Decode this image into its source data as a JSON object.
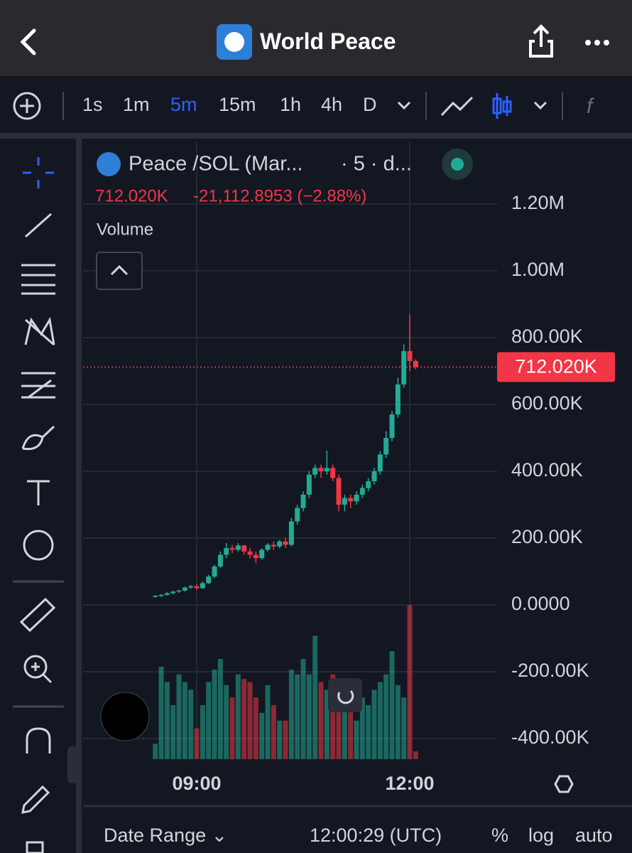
{
  "header": {
    "title": "World Peace"
  },
  "toolbar": {
    "intervals": [
      "1s",
      "1m",
      "5m",
      "15m",
      "1h",
      "4h",
      "D"
    ]
  },
  "chart_data": {
    "type": "candlestick",
    "title": "Peace /SOL (Mar...",
    "subtitle": "· 5 · d...",
    "change": "-21,112.8953 (−2.88%)",
    "volume_label": "Volume",
    "categories": [
      null,
      null,
      null,
      null,
      null,
      null,
      null,
      "09:00",
      null,
      null,
      null,
      null,
      null,
      null,
      null,
      null,
      null,
      null,
      null,
      null,
      null,
      null,
      null,
      null,
      null,
      null,
      null,
      null,
      null,
      null,
      null,
      null,
      null,
      null,
      null,
      null,
      null,
      null,
      null,
      null,
      null,
      null,
      null,
      "12:00",
      null
    ],
    "open": [
      25000,
      27000,
      30000,
      35000,
      40000,
      43000,
      52000,
      56000,
      50000,
      65000,
      85000,
      115000,
      150000,
      170000,
      165000,
      178000,
      160000,
      150000,
      140000,
      165000,
      180000,
      175000,
      190000,
      180000,
      250000,
      290000,
      330000,
      390000,
      410000,
      400000,
      410000,
      380000,
      300000,
      320000,
      310000,
      330000,
      350000,
      370000,
      400000,
      450000,
      500000,
      570000,
      660000,
      760000,
      730000
    ],
    "high": [
      30000,
      32000,
      38000,
      42000,
      45000,
      55000,
      60000,
      62000,
      70000,
      90000,
      120000,
      160000,
      185000,
      180000,
      185000,
      180000,
      170000,
      160000,
      170000,
      185000,
      190000,
      195000,
      200000,
      260000,
      300000,
      340000,
      400000,
      420000,
      420000,
      462000,
      420000,
      390000,
      330000,
      330000,
      340000,
      360000,
      380000,
      410000,
      460000,
      520000,
      580000,
      680000,
      780000,
      870000,
      735000
    ],
    "low": [
      22000,
      24000,
      28000,
      32000,
      36000,
      40000,
      48000,
      45000,
      48000,
      62000,
      80000,
      110000,
      140000,
      155000,
      160000,
      150000,
      140000,
      125000,
      135000,
      160000,
      165000,
      170000,
      170000,
      175000,
      240000,
      280000,
      320000,
      380000,
      380000,
      390000,
      370000,
      280000,
      280000,
      290000,
      300000,
      320000,
      340000,
      360000,
      390000,
      440000,
      490000,
      560000,
      650000,
      700000,
      705000
    ],
    "close": [
      27000,
      30000,
      35000,
      40000,
      43000,
      52000,
      56000,
      50000,
      65000,
      85000,
      115000,
      150000,
      170000,
      165000,
      178000,
      160000,
      150000,
      140000,
      165000,
      180000,
      175000,
      190000,
      180000,
      250000,
      290000,
      330000,
      390000,
      410000,
      400000,
      410000,
      380000,
      300000,
      320000,
      310000,
      330000,
      350000,
      370000,
      400000,
      450000,
      500000,
      570000,
      660000,
      760000,
      730000,
      712020
    ],
    "volume": [
      10,
      60,
      50,
      35,
      55,
      50,
      45,
      20,
      35,
      50,
      58,
      65,
      48,
      40,
      55,
      52,
      50,
      40,
      30,
      48,
      35,
      25,
      25,
      58,
      55,
      65,
      55,
      80,
      50,
      45,
      55,
      50,
      40,
      52,
      25,
      40,
      35,
      45,
      50,
      55,
      70,
      48,
      40,
      100,
      5
    ],
    "up_color": "#22ab94",
    "down_color": "#f23645",
    "ylim": [
      -461700,
      1385100
    ],
    "yticks": [
      {
        "value": -400000,
        "label": "-400.00K"
      },
      {
        "value": -200000,
        "label": "-200.00K"
      },
      {
        "value": 0,
        "label": "0.0000"
      },
      {
        "value": 200000,
        "label": "200.00K"
      },
      {
        "value": 400000,
        "label": "400.00K"
      },
      {
        "value": 600000,
        "label": "600.00K"
      },
      {
        "value": 800000,
        "label": "800.00K"
      },
      {
        "value": 1000000,
        "label": "1.00M"
      },
      {
        "value": 1200000,
        "label": "1.20M"
      }
    ],
    "last_price": {
      "value": 712020,
      "label": "712.020K"
    },
    "grid": true
  },
  "footer": {
    "date_range": "Date Range",
    "time": "12:00:29 (UTC)",
    "percent": "%",
    "log": "log",
    "auto": "auto"
  }
}
